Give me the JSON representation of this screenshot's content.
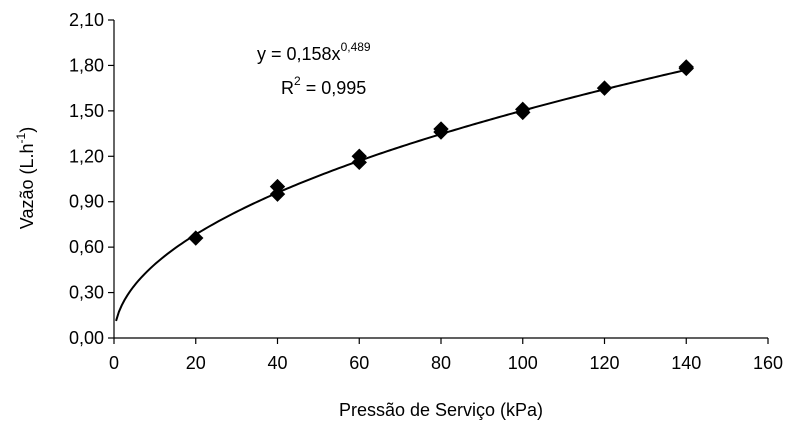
{
  "chart_data": {
    "type": "scatter",
    "xlabel": "Pressão de Serviço (kPa)",
    "ylabel_main": "Vazão (L.h",
    "ylabel_sup": "-1",
    "ylabel_close": ")",
    "xlim": [
      0,
      160
    ],
    "ylim": [
      0,
      2.1
    ],
    "x_ticks": [
      0,
      20,
      40,
      60,
      80,
      100,
      120,
      140,
      160
    ],
    "x_tick_labels": [
      "0",
      "20",
      "40",
      "60",
      "80",
      "100",
      "120",
      "140",
      "160"
    ],
    "y_ticks": [
      0,
      0.3,
      0.6,
      0.9,
      1.2,
      1.5,
      1.8,
      2.1
    ],
    "y_tick_labels": [
      "0,00",
      "0,30",
      "0,60",
      "0,90",
      "1,20",
      "1,50",
      "1,80",
      "2,10"
    ],
    "grid": false,
    "legend": "none",
    "series": [
      {
        "marker": "diamond",
        "color": "#000000",
        "points": [
          {
            "x": 20,
            "y": 0.66
          },
          {
            "x": 40,
            "y": 0.95
          },
          {
            "x": 40,
            "y": 1.0
          },
          {
            "x": 60,
            "y": 1.16
          },
          {
            "x": 60,
            "y": 1.2
          },
          {
            "x": 80,
            "y": 1.36
          },
          {
            "x": 80,
            "y": 1.38
          },
          {
            "x": 100,
            "y": 1.49
          },
          {
            "x": 100,
            "y": 1.51
          },
          {
            "x": 120,
            "y": 1.65
          },
          {
            "x": 140,
            "y": 1.78
          },
          {
            "x": 140,
            "y": 1.79
          }
        ]
      }
    ],
    "trendline": {
      "type": "power",
      "coefficient": 0.158,
      "exponent": 0.489,
      "x_range": [
        0.5,
        140
      ],
      "equation_main": "y = 0,158x",
      "equation_exp": "0,489",
      "r2_label": "R",
      "r2_sup": "2",
      "r2_value": " = 0,995"
    }
  }
}
